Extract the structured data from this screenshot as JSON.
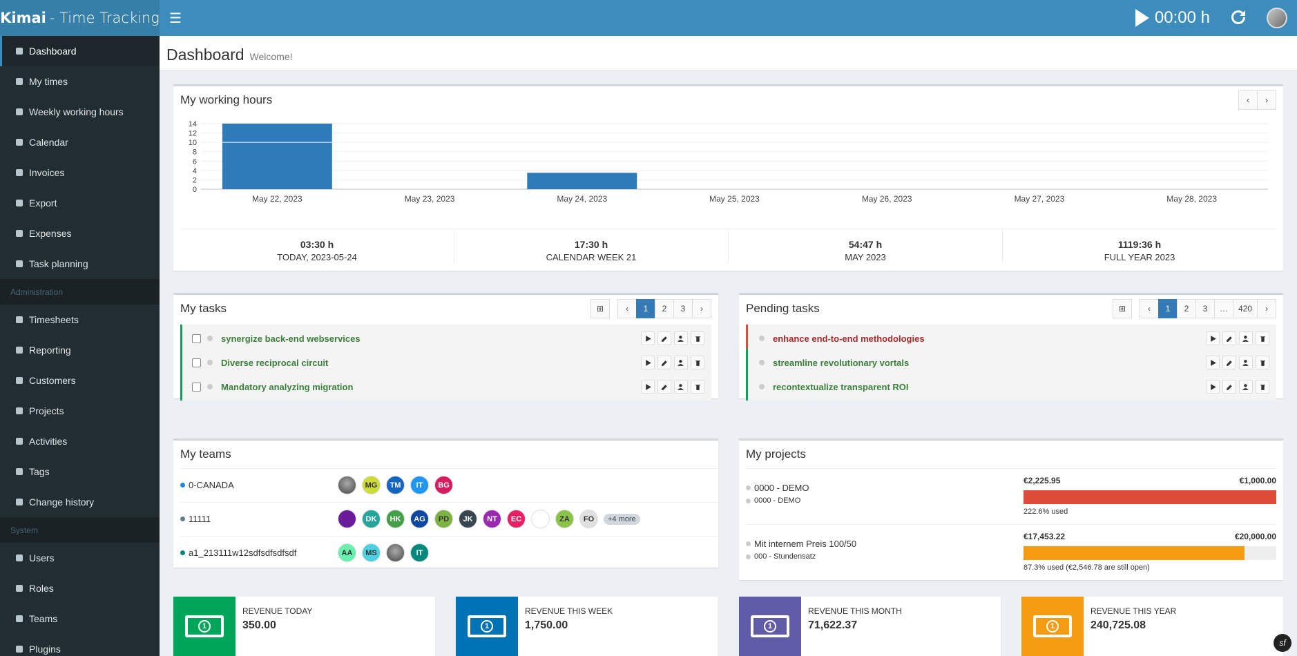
{
  "brand": {
    "bold": "Kimai",
    "rest": "- Time Tracking"
  },
  "topbar": {
    "timer": "00:00 h"
  },
  "nav": {
    "items": [
      {
        "label": "Dashboard",
        "icon": "dashboard-icon"
      },
      {
        "label": "My times",
        "icon": "clock-icon"
      },
      {
        "label": "Weekly working hours",
        "icon": "grid-icon"
      },
      {
        "label": "Calendar",
        "icon": "calendar-icon"
      },
      {
        "label": "Invoices",
        "icon": "invoice-icon"
      },
      {
        "label": "Export",
        "icon": "export-icon"
      },
      {
        "label": "Expenses",
        "icon": "credit-card-icon"
      },
      {
        "label": "Task planning",
        "icon": "clipboard-icon"
      }
    ],
    "admin_header": "Administration",
    "admin_items": [
      {
        "label": "Timesheets",
        "icon": "user-clock-icon"
      },
      {
        "label": "Reporting",
        "icon": "chart-icon"
      },
      {
        "label": "Customers",
        "icon": "user-icon"
      },
      {
        "label": "Projects",
        "icon": "briefcase-icon"
      },
      {
        "label": "Activities",
        "icon": "list-icon"
      },
      {
        "label": "Tags",
        "icon": "tags-icon"
      },
      {
        "label": "Change history",
        "icon": "history-icon"
      }
    ],
    "system_header": "System",
    "system_items": [
      {
        "label": "Users",
        "icon": "users-icon"
      },
      {
        "label": "Roles",
        "icon": "user-shield-icon"
      },
      {
        "label": "Teams",
        "icon": "team-icon"
      },
      {
        "label": "Plugins",
        "icon": "plug-icon"
      }
    ]
  },
  "page": {
    "title": "Dashboard",
    "subtitle": "Welcome!"
  },
  "working_hours": {
    "title": "My working hours",
    "stats": [
      {
        "value": "03:30 h",
        "label": "TODAY, 2023-05-24"
      },
      {
        "value": "17:30 h",
        "label": "CALENDAR WEEK 21"
      },
      {
        "value": "54:47 h",
        "label": "MAY 2023"
      },
      {
        "value": "1119:36 h",
        "label": "FULL YEAR 2023"
      }
    ]
  },
  "chart_data": {
    "type": "bar",
    "categories": [
      "May 22, 2023",
      "May 23, 2023",
      "May 24, 2023",
      "May 25, 2023",
      "May 26, 2023",
      "May 27, 2023",
      "May 28, 2023"
    ],
    "series": [
      {
        "values": [
          [
            10,
            4
          ],
          [
            0,
            0
          ],
          [
            3.5,
            0
          ],
          [
            0,
            0
          ],
          [
            0,
            0
          ],
          [
            0,
            0
          ],
          [
            0,
            0
          ]
        ]
      }
    ],
    "values": [
      14,
      0,
      3.5,
      0,
      0,
      0,
      0
    ],
    "ylim": [
      0,
      14
    ],
    "yticks": [
      "14",
      "12",
      "10",
      "8",
      "6",
      "4",
      "2",
      "0"
    ],
    "color": "#2f7ab8"
  },
  "my_tasks": {
    "title": "My tasks",
    "pages": [
      "1",
      "2",
      "3"
    ],
    "items": [
      "synergize back-end webservices",
      "Diverse reciprocal circuit",
      "Mandatory analyzing migration"
    ]
  },
  "pending_tasks": {
    "title": "Pending tasks",
    "pages": [
      "1",
      "2",
      "3",
      "…",
      "420"
    ],
    "items": [
      "enhance end-to-end methodologies",
      "streamline revolutionary vortals",
      "recontextualize transparent ROI"
    ]
  },
  "my_teams": {
    "title": "My teams",
    "rows": [
      {
        "name": "0-CANADA",
        "dot": "#1e88e5",
        "members": [
          {
            "i": "",
            "c": "img"
          },
          {
            "i": "MG",
            "c": "#cddc39"
          },
          {
            "i": "TM",
            "c": "#1565c0"
          },
          {
            "i": "IT",
            "c": "#2196f3"
          },
          {
            "i": "BG",
            "c": "#d81b60"
          }
        ]
      },
      {
        "name": "11111",
        "dot": "#607d8b",
        "members": [
          {
            "i": "",
            "c": "#6a1b9a"
          },
          {
            "i": "DK",
            "c": "#26a69a"
          },
          {
            "i": "HK",
            "c": "#43a047"
          },
          {
            "i": "AG",
            "c": "#0d47a1"
          },
          {
            "i": "PD",
            "c": "#7cb342"
          },
          {
            "i": "JK",
            "c": "#37474f"
          },
          {
            "i": "NT",
            "c": "#9c27b0"
          },
          {
            "i": "EC",
            "c": "#e91e63"
          },
          {
            "i": "",
            "c": "#fff"
          },
          {
            "i": "ZA",
            "c": "#8bc34a"
          },
          {
            "i": "FO",
            "c": "#e0e0e0"
          }
        ],
        "more": "+4 more"
      },
      {
        "name": "a1_213111w12sdfsdfsdfsdf",
        "dot": "#00897b",
        "members": [
          {
            "i": "AA",
            "c": "#69f0ae"
          },
          {
            "i": "MS",
            "c": "#4dd0e1"
          },
          {
            "i": "",
            "c": "img"
          },
          {
            "i": "IT",
            "c": "#00897b"
          }
        ]
      }
    ]
  },
  "my_projects": {
    "title": "My projects",
    "items": [
      {
        "name": "0000 - DEMO",
        "sub": "0000 - DEMO",
        "spent": "€2,225.95",
        "budget": "€1,000.00",
        "percent": 100,
        "color": "#dd4b39",
        "used": "222.6% used"
      },
      {
        "name": "Mit internem Preis 100/50",
        "sub": "000 - Stundensatz",
        "spent": "€17,453.22",
        "budget": "€20,000.00",
        "percent": 87.3,
        "color": "#f39c12",
        "used": "87.3% used (€2,546.78 are still open)"
      }
    ]
  },
  "revenue": [
    {
      "label": "REVENUE TODAY",
      "value": "350.00",
      "color": "#00a65a"
    },
    {
      "label": "REVENUE THIS WEEK",
      "value": "1,750.00",
      "color": "#0073b7"
    },
    {
      "label": "REVENUE THIS MONTH",
      "value": "71,622.37",
      "color": "#605ca8"
    },
    {
      "label": "REVENUE THIS YEAR",
      "value": "240,725.08",
      "color": "#f39c12"
    }
  ]
}
